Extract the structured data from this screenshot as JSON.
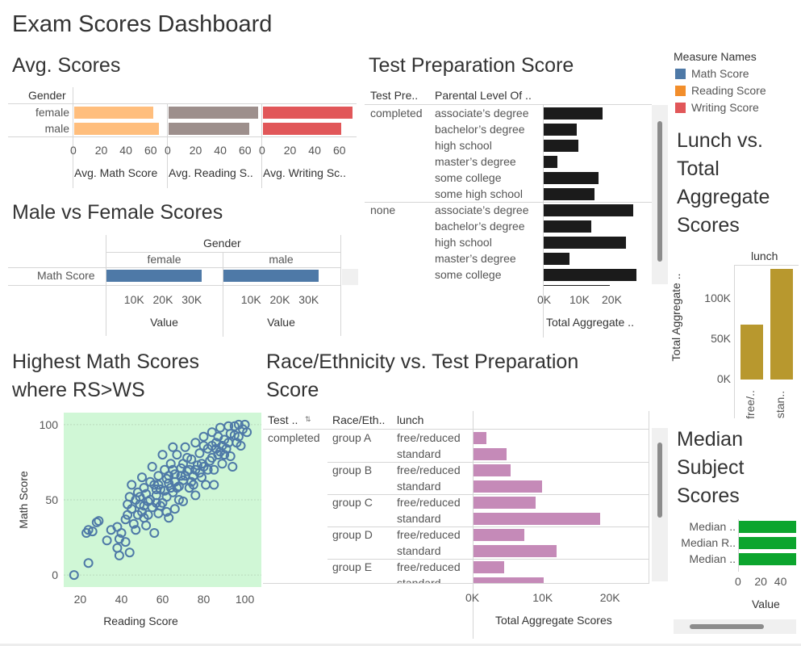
{
  "dashboard_title": "Exam Scores Dashboard",
  "colors": {
    "math": "#4e79a7",
    "reading": "#f28e2b",
    "writing": "#e15759",
    "avg_math": "#ffbe7d",
    "avg_reading": "#9d8f8c",
    "avg_writing": "#e15759",
    "test_prep": "#1b1b1b",
    "race": "#c58ab8",
    "lunch": "#b8982e",
    "median": "#0ca52e",
    "scatter_bg": "#d0f7d6"
  },
  "legend": {
    "title": "Measure Names",
    "items": [
      {
        "label": "Math Score",
        "color": "#4e79a7"
      },
      {
        "label": "Reading Score",
        "color": "#f28e2b"
      },
      {
        "label": "Writing Score",
        "color": "#e15759"
      }
    ]
  },
  "chart_data": [
    {
      "id": "avg_scores",
      "type": "bar",
      "title": "Avg. Scores",
      "row_header": "Gender",
      "categories": [
        "female",
        "male"
      ],
      "series": [
        {
          "name": "Avg. Math Score",
          "values": [
            63.6,
            68.7
          ]
        },
        {
          "name": "Avg. Reading S..",
          "values": [
            72.6,
            65.5
          ]
        },
        {
          "name": "Avg. Writing Sc..",
          "values": [
            72.5,
            63.3
          ]
        }
      ],
      "ticks": [
        0,
        20,
        40,
        60
      ],
      "xlim": [
        0,
        75
      ]
    },
    {
      "id": "male_vs_female",
      "type": "bar",
      "title": "Male vs Female Scores",
      "column_header": "Gender",
      "columns": [
        "female",
        "male"
      ],
      "row_label": "Math Score",
      "values": [
        32962,
        33127
      ],
      "xlabel": "Value",
      "ticks": [
        10000,
        20000,
        30000
      ],
      "tick_labels": [
        "10K",
        "20K",
        "30K"
      ],
      "xlim": [
        0,
        40000
      ]
    },
    {
      "id": "test_prep",
      "type": "bar",
      "title": "Test Preparation Score",
      "col_headers": [
        "Test Pre..",
        "Parental Level Of .."
      ],
      "groups": [
        {
          "name": "completed",
          "rows": [
            {
              "label": "associate’s degree",
              "value": 18200
            },
            {
              "label": "bachelor’s degree",
              "value": 10200
            },
            {
              "label": "high school",
              "value": 10800
            },
            {
              "label": "master’s degree",
              "value": 4300
            },
            {
              "label": "some college",
              "value": 16900
            },
            {
              "label": "some high school",
              "value": 15700
            }
          ]
        },
        {
          "name": "none",
          "rows": [
            {
              "label": "associate’s degree",
              "value": 27700
            },
            {
              "label": "bachelor’s degree",
              "value": 14700
            },
            {
              "label": "high school",
              "value": 25600
            },
            {
              "label": "master’s degree",
              "value": 8100
            },
            {
              "label": "some college",
              "value": 28800
            }
          ]
        }
      ],
      "ticks": [
        0,
        10000,
        20000
      ],
      "tick_labels": [
        "0K",
        "10K",
        "20K"
      ],
      "xlim": [
        0,
        30000
      ],
      "xlabel": "Total Aggregate .."
    },
    {
      "id": "lunch",
      "type": "bar",
      "title": "Lunch vs. Total Aggregate Scores",
      "title_lines": [
        "Lunch vs.",
        "Total",
        "Aggregate",
        "Scores"
      ],
      "column_header": "lunch",
      "categories": [
        "free/..",
        "stan.."
      ],
      "values": [
        68000,
        137000
      ],
      "ylabel": "Total Aggregate ..",
      "ticks": [
        0,
        50000,
        100000
      ],
      "tick_labels": [
        "0K",
        "50K",
        "100K"
      ],
      "ylim": [
        0,
        140000
      ]
    },
    {
      "id": "scatter",
      "type": "scatter",
      "title": "Highest Math Scores where RS>WS",
      "title_lines": [
        "Highest Math Scores",
        "where RS>WS"
      ],
      "xlabel": "Reading Score",
      "ylabel": "Math Score",
      "xticks": [
        20,
        40,
        60,
        80,
        100
      ],
      "yticks": [
        0,
        50,
        100
      ],
      "xlim": [
        12,
        108
      ],
      "ylim": [
        -8,
        108
      ],
      "points": [
        [
          17,
          0
        ],
        [
          24,
          8
        ],
        [
          23,
          28
        ],
        [
          24,
          30
        ],
        [
          26,
          29
        ],
        [
          28,
          35
        ],
        [
          29,
          36
        ],
        [
          33,
          23
        ],
        [
          38,
          18
        ],
        [
          39,
          13
        ],
        [
          39,
          24
        ],
        [
          40,
          28
        ],
        [
          42,
          22
        ],
        [
          42,
          37
        ],
        [
          43,
          40
        ],
        [
          44,
          15
        ],
        [
          45,
          44
        ],
        [
          47,
          30
        ],
        [
          48,
          55
        ],
        [
          49,
          47
        ],
        [
          50,
          42
        ],
        [
          51,
          38
        ],
        [
          51,
          58
        ],
        [
          52,
          33
        ],
        [
          53,
          49
        ],
        [
          54,
          62
        ],
        [
          55,
          45
        ],
        [
          56,
          28
        ],
        [
          57,
          53
        ],
        [
          58,
          66
        ],
        [
          58,
          41
        ],
        [
          59,
          57
        ],
        [
          60,
          48
        ],
        [
          61,
          70
        ],
        [
          62,
          52
        ],
        [
          63,
          38
        ],
        [
          63,
          61
        ],
        [
          64,
          74
        ],
        [
          65,
          55
        ],
        [
          66,
          44
        ],
        [
          66,
          67
        ],
        [
          67,
          80
        ],
        [
          68,
          59
        ],
        [
          69,
          71
        ],
        [
          70,
          63
        ],
        [
          70,
          49
        ],
        [
          71,
          85
        ],
        [
          72,
          69
        ],
        [
          73,
          58
        ],
        [
          74,
          77
        ],
        [
          75,
          66
        ],
        [
          76,
          88
        ],
        [
          76,
          53
        ],
        [
          77,
          73
        ],
        [
          78,
          81
        ],
        [
          79,
          65
        ],
        [
          80,
          92
        ],
        [
          80,
          72
        ],
        [
          81,
          60
        ],
        [
          82,
          84
        ],
        [
          83,
          76
        ],
        [
          84,
          95
        ],
        [
          85,
          70
        ],
        [
          86,
          88
        ],
        [
          87,
          80
        ],
        [
          88,
          98
        ],
        [
          89,
          74
        ],
        [
          90,
          90
        ],
        [
          91,
          84
        ],
        [
          92,
          99
        ],
        [
          93,
          79
        ],
        [
          95,
          93
        ],
        [
          96,
          88
        ],
        [
          97,
          100
        ],
        [
          99,
          97
        ],
        [
          100,
          100
        ],
        [
          98,
          86
        ],
        [
          94,
          72
        ],
        [
          55,
          72
        ],
        [
          60,
          80
        ],
        [
          45,
          60
        ],
        [
          50,
          65
        ],
        [
          85,
          60
        ],
        [
          65,
          85
        ],
        [
          62,
          42
        ],
        [
          74,
          62
        ],
        [
          78,
          68
        ],
        [
          68,
          50
        ],
        [
          57,
          48
        ],
        [
          53,
          40
        ],
        [
          47,
          50
        ],
        [
          72,
          78
        ],
        [
          82,
          70
        ],
        [
          88,
          82
        ],
        [
          92,
          88
        ],
        [
          35,
          30
        ],
        [
          46,
          34
        ],
        [
          58,
          60
        ],
        [
          64,
          58
        ],
        [
          70,
          74
        ],
        [
          76,
          70
        ],
        [
          84,
          78
        ],
        [
          90,
          80
        ],
        [
          66,
          62
        ],
        [
          61,
          56
        ],
        [
          56,
          60
        ],
        [
          52,
          54
        ],
        [
          49,
          52
        ],
        [
          43,
          47
        ],
        [
          69,
          66
        ],
        [
          73,
          70
        ],
        [
          79,
          74
        ],
        [
          86,
          84
        ],
        [
          95,
          99
        ],
        [
          101,
          95
        ],
        [
          63,
          66
        ],
        [
          67,
          58
        ],
        [
          71,
          66
        ],
        [
          75,
          60
        ],
        [
          59,
          46
        ],
        [
          54,
          50
        ],
        [
          48,
          40
        ],
        [
          44,
          52
        ],
        [
          38,
          32
        ],
        [
          80,
          86
        ],
        [
          84,
          86
        ],
        [
          87,
          92
        ],
        [
          89,
          86
        ],
        [
          93,
          94
        ],
        [
          97,
          92
        ],
        [
          65,
          70
        ],
        [
          62,
          64
        ],
        [
          57,
          57
        ],
        [
          51,
          46
        ]
      ]
    },
    {
      "id": "race_ethnicity",
      "type": "bar",
      "title": "Race/Ethnicity vs. Test Preparation Score",
      "title_lines": [
        "Race/Ethnicity vs. Test Preparation",
        "Score"
      ],
      "col_headers": [
        "Test ..",
        "Race/Eth..",
        "lunch"
      ],
      "test_group": "completed",
      "groups": [
        {
          "name": "group A",
          "rows": [
            {
              "label": "free/reduced",
              "value": 1900
            },
            {
              "label": "standard",
              "value": 4900
            }
          ]
        },
        {
          "name": "group B",
          "rows": [
            {
              "label": "free/reduced",
              "value": 5500
            },
            {
              "label": "standard",
              "value": 10200
            }
          ]
        },
        {
          "name": "group C",
          "rows": [
            {
              "label": "free/reduced",
              "value": 9200
            },
            {
              "label": "standard",
              "value": 18800
            }
          ]
        },
        {
          "name": "group D",
          "rows": [
            {
              "label": "free/reduced",
              "value": 7600
            },
            {
              "label": "standard",
              "value": 12300
            }
          ]
        },
        {
          "name": "group E",
          "rows": [
            {
              "label": "free/reduced",
              "value": 4600
            },
            {
              "label": "standard",
              "value": 10400
            }
          ]
        }
      ],
      "ticks": [
        0,
        10000,
        20000
      ],
      "tick_labels": [
        "0K",
        "10K",
        "20K"
      ],
      "xlim": [
        0,
        24000
      ],
      "xlabel": "Total Aggregate Scores"
    },
    {
      "id": "median",
      "type": "bar",
      "title": "Median Subject Scores",
      "title_lines": [
        "Median",
        "Subject",
        "Scores"
      ],
      "categories": [
        "Median ..",
        "Median R..",
        "Median .."
      ],
      "values": [
        66,
        70,
        69
      ],
      "ticks": [
        0,
        20,
        40
      ],
      "xlim": [
        0,
        30
      ],
      "xlabel": "Value"
    }
  ]
}
